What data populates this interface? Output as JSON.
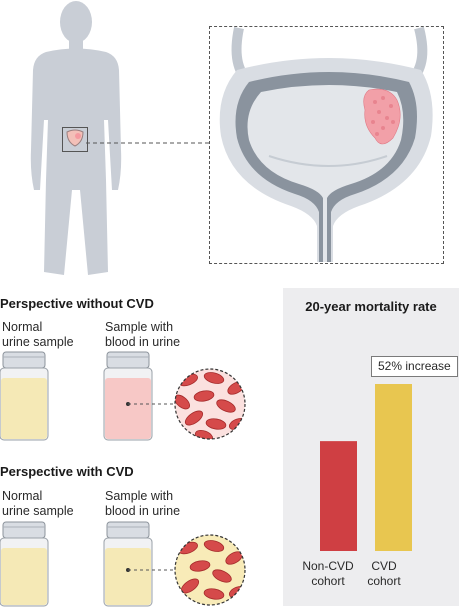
{
  "top_left_heading": "Perspective without CVD",
  "bottom_left_heading": "Perspective with CVD",
  "samples": {
    "normal_label_line1": "Normal",
    "normal_label_line2": "urine sample",
    "blood_label_line1": "Sample with",
    "blood_label_line2": "blood in urine"
  },
  "chart_data": {
    "type": "bar",
    "title": "20-year mortality rate",
    "categories": [
      "Non-CVD cohort",
      "CVD cohort"
    ],
    "category_lines": [
      [
        "Non-CVD",
        "cohort"
      ],
      [
        "CVD",
        "cohort"
      ]
    ],
    "values": [
      1,
      1.52
    ],
    "bar_colors": [
      "#cf3f43",
      "#e8c650"
    ],
    "annotation": "52% increase",
    "xlabel": "",
    "ylabel": ""
  },
  "colors": {
    "body_silhouette": "#c9ced6",
    "bladder_wall": "#8a939e",
    "tumor": "#f2a0a8",
    "urine_normal": "#f5e9b6",
    "urine_blood": "#f7c8c6",
    "blood_cell": "#d54a4a"
  }
}
